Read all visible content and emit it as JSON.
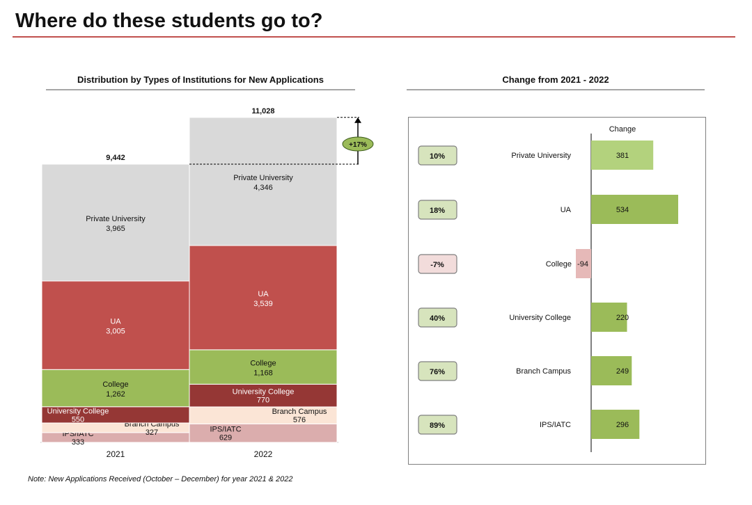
{
  "page": {
    "title": "Where do these students go to?",
    "note": "Note: New Applications Received (October – December) for year 2021 & 2022"
  },
  "colors": {
    "private": "#d9d9d9",
    "ua": "#c0504d",
    "college": "#9bbb59",
    "univ_college": "#953735",
    "branch": "#fbe5d6",
    "ips": "#dbadad",
    "change_pos": "#9bbb59",
    "change_pos_light": "#b3d27d",
    "change_neg": "#e6b9b8",
    "pct_pos_bg": "#d7e4bd",
    "pct_neg_bg": "#f2dcdb"
  },
  "chart_data": [
    {
      "type": "bar",
      "stacked": true,
      "title": "Distribution by Types of Institutions for New Applications",
      "categories": [
        "2021",
        "2022"
      ],
      "totals": [
        "9,442",
        "11,028"
      ],
      "total_values": [
        9442,
        11028
      ],
      "growth_label": "+17%",
      "series": [
        {
          "key": "ips",
          "name": "IPS/IATC",
          "values": [
            333,
            629
          ],
          "labels": [
            "333",
            "629"
          ]
        },
        {
          "key": "branch",
          "name": "Branch Campus",
          "values": [
            327,
            576
          ],
          "labels": [
            "327",
            "576"
          ]
        },
        {
          "key": "univ_college",
          "name": "University College",
          "values": [
            550,
            770
          ],
          "labels": [
            "550",
            "770"
          ]
        },
        {
          "key": "college",
          "name": "College",
          "values": [
            1262,
            1168
          ],
          "labels": [
            "1,262",
            "1,168"
          ]
        },
        {
          "key": "ua",
          "name": "UA",
          "values": [
            3005,
            3539
          ],
          "labels": [
            "3,005",
            "3,539"
          ]
        },
        {
          "key": "private",
          "name": "Private University",
          "values": [
            3965,
            4346
          ],
          "labels": [
            "3,965",
            "4,346"
          ]
        }
      ]
    },
    {
      "type": "bar",
      "orientation": "horizontal",
      "title": "Change from  2021 - 2022",
      "column_header": "Change",
      "categories": [
        "Private University",
        "UA",
        "College",
        "University College",
        "Branch Campus",
        "IPS/IATC"
      ],
      "values": [
        381,
        534,
        -94,
        220,
        249,
        296
      ],
      "value_labels": [
        "381",
        "534",
        "-94",
        "220",
        "249",
        "296"
      ],
      "percent_change": [
        "10%",
        "18%",
        "-7%",
        "40%",
        "76%",
        "89%"
      ]
    }
  ]
}
